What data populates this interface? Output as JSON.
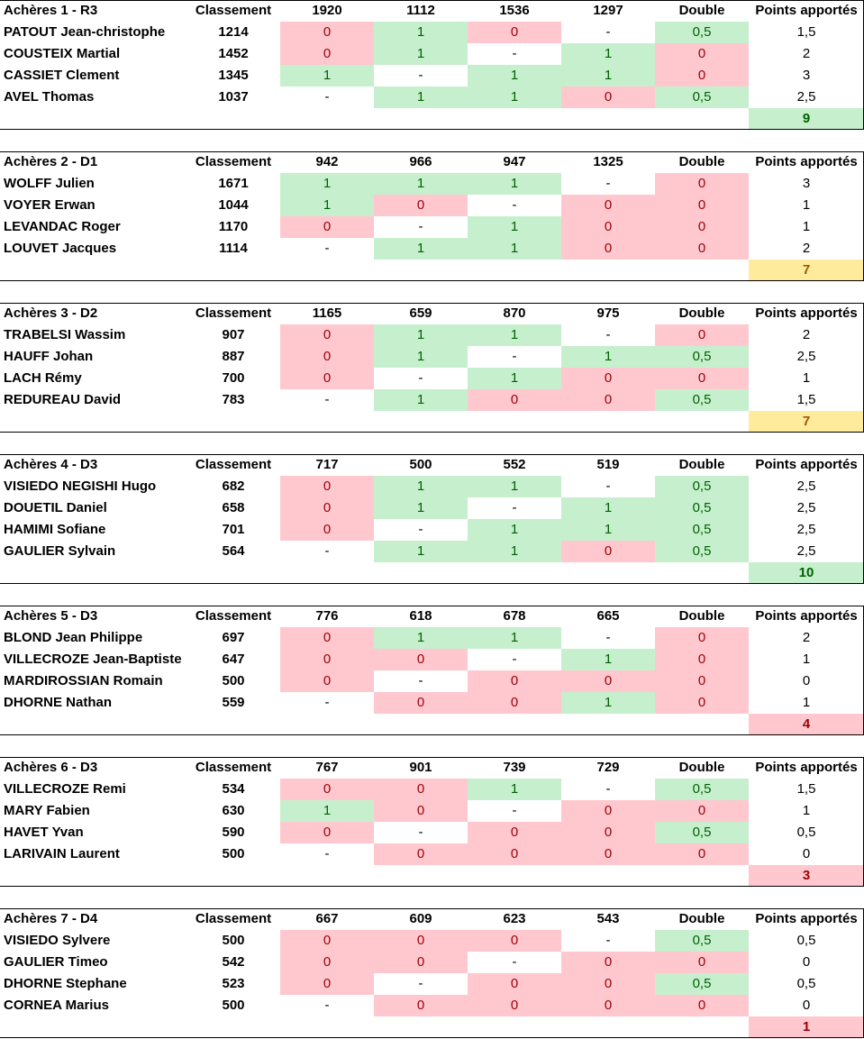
{
  "header_labels": {
    "rank": "Classement",
    "double": "Double",
    "points": "Points apportés"
  },
  "teams": [
    {
      "title": "Achères 1 - R3",
      "opponents": [
        "1920",
        "1112",
        "1536",
        "1297"
      ],
      "players": [
        {
          "name": "PATOUT Jean-christophe",
          "rank": "1214",
          "m": [
            "0",
            "1",
            "0",
            "-"
          ],
          "double": "0,5",
          "points": "1,5"
        },
        {
          "name": "COUSTEIX Martial",
          "rank": "1452",
          "m": [
            "0",
            "1",
            "-",
            "1"
          ],
          "double": "0",
          "points": "2"
        },
        {
          "name": "CASSIET Clement",
          "rank": "1345",
          "m": [
            "1",
            "-",
            "1",
            "1"
          ],
          "double": "0",
          "points": "3"
        },
        {
          "name": "AVEL Thomas",
          "rank": "1037",
          "m": [
            "-",
            "1",
            "1",
            "0"
          ],
          "double": "0,5",
          "points": "2,5"
        }
      ],
      "total": "9",
      "total_status": "green"
    },
    {
      "title": "Achères 2 - D1",
      "opponents": [
        "942",
        "966",
        "947",
        "1325"
      ],
      "players": [
        {
          "name": "WOLFF Julien",
          "rank": "1671",
          "m": [
            "1",
            "1",
            "1",
            "-"
          ],
          "double": "0",
          "points": "3"
        },
        {
          "name": "VOYER Erwan",
          "rank": "1044",
          "m": [
            "1",
            "0",
            "-",
            "0"
          ],
          "double": "0",
          "points": "1"
        },
        {
          "name": "LEVANDAC Roger",
          "rank": "1170",
          "m": [
            "0",
            "-",
            "1",
            "0"
          ],
          "double": "0",
          "points": "1"
        },
        {
          "name": "LOUVET Jacques",
          "rank": "1114",
          "m": [
            "-",
            "1",
            "1",
            "0"
          ],
          "double": "0",
          "points": "2"
        }
      ],
      "total": "7",
      "total_status": "yellow"
    },
    {
      "title": "Achères 3 - D2",
      "opponents": [
        "1165",
        "659",
        "870",
        "975"
      ],
      "players": [
        {
          "name": "TRABELSI Wassim",
          "rank": "907",
          "m": [
            "0",
            "1",
            "1",
            "-"
          ],
          "double": "0",
          "points": "2"
        },
        {
          "name": "HAUFF Johan",
          "rank": "887",
          "m": [
            "0",
            "1",
            "-",
            "1"
          ],
          "double": "0,5",
          "points": "2,5"
        },
        {
          "name": "LACH Rémy",
          "rank": "700",
          "m": [
            "0",
            "-",
            "1",
            "0"
          ],
          "double": "0",
          "points": "1"
        },
        {
          "name": "REDUREAU David",
          "rank": "783",
          "m": [
            "-",
            "1",
            "0",
            "0"
          ],
          "double": "0,5",
          "points": "1,5"
        }
      ],
      "total": "7",
      "total_status": "yellow"
    },
    {
      "title": "Achères 4 - D3",
      "opponents": [
        "717",
        "500",
        "552",
        "519"
      ],
      "players": [
        {
          "name": "VISIEDO NEGISHI Hugo",
          "rank": "682",
          "m": [
            "0",
            "1",
            "1",
            "-"
          ],
          "double": "0,5",
          "points": "2,5"
        },
        {
          "name": "DOUETIL Daniel",
          "rank": "658",
          "m": [
            "0",
            "1",
            "-",
            "1"
          ],
          "double": "0,5",
          "points": "2,5"
        },
        {
          "name": "HAMIMI Sofiane",
          "rank": "701",
          "m": [
            "0",
            "-",
            "1",
            "1"
          ],
          "double": "0,5",
          "points": "2,5"
        },
        {
          "name": "GAULIER Sylvain",
          "rank": "564",
          "m": [
            "-",
            "1",
            "1",
            "0"
          ],
          "double": "0,5",
          "points": "2,5"
        }
      ],
      "total": "10",
      "total_status": "green"
    },
    {
      "title": "Achères 5 - D3",
      "opponents": [
        "776",
        "618",
        "678",
        "665"
      ],
      "players": [
        {
          "name": "BLOND Jean Philippe",
          "rank": "697",
          "m": [
            "0",
            "1",
            "1",
            "-"
          ],
          "double": "0",
          "points": "2"
        },
        {
          "name": "VILLECROZE Jean-Baptiste",
          "rank": "647",
          "m": [
            "0",
            "0",
            "-",
            "1"
          ],
          "double": "0",
          "points": "1"
        },
        {
          "name": "MARDIROSSIAN Romain",
          "rank": "500",
          "m": [
            "0",
            "-",
            "0",
            "0"
          ],
          "double": "0",
          "points": "0"
        },
        {
          "name": "DHORNE Nathan",
          "rank": "559",
          "m": [
            "-",
            "0",
            "0",
            "1"
          ],
          "double": "0",
          "points": "1"
        }
      ],
      "total": "4",
      "total_status": "red"
    },
    {
      "title": "Achères 6 - D3",
      "opponents": [
        "767",
        "901",
        "739",
        "729"
      ],
      "players": [
        {
          "name": "VILLECROZE Remi",
          "rank": "534",
          "m": [
            "0",
            "0",
            "1",
            "-"
          ],
          "double": "0,5",
          "points": "1,5"
        },
        {
          "name": "MARY Fabien",
          "rank": "630",
          "m": [
            "1",
            "0",
            "-",
            "0"
          ],
          "double": "0",
          "points": "1"
        },
        {
          "name": "HAVET Yvan",
          "rank": "590",
          "m": [
            "0",
            "-",
            "0",
            "0"
          ],
          "double": "0,5",
          "points": "0,5"
        },
        {
          "name": "LARIVAIN Laurent",
          "rank": "500",
          "m": [
            "-",
            "0",
            "0",
            "0"
          ],
          "double": "0",
          "points": "0"
        }
      ],
      "total": "3",
      "total_status": "red"
    },
    {
      "title": "Achères 7 - D4",
      "opponents": [
        "667",
        "609",
        "623",
        "543"
      ],
      "players": [
        {
          "name": "VISIEDO Sylvere",
          "rank": "500",
          "m": [
            "0",
            "0",
            "0",
            "-"
          ],
          "double": "0,5",
          "points": "0,5"
        },
        {
          "name": "GAULIER Timeo",
          "rank": "542",
          "m": [
            "0",
            "0",
            "-",
            "0"
          ],
          "double": "0",
          "points": "0"
        },
        {
          "name": "DHORNE Stephane",
          "rank": "523",
          "m": [
            "0",
            "-",
            "0",
            "0"
          ],
          "double": "0,5",
          "points": "0,5"
        },
        {
          "name": "CORNEA Marius",
          "rank": "500",
          "m": [
            "-",
            "0",
            "0",
            "0"
          ],
          "double": "0",
          "points": "0"
        }
      ],
      "total": "1",
      "total_status": "red"
    }
  ]
}
